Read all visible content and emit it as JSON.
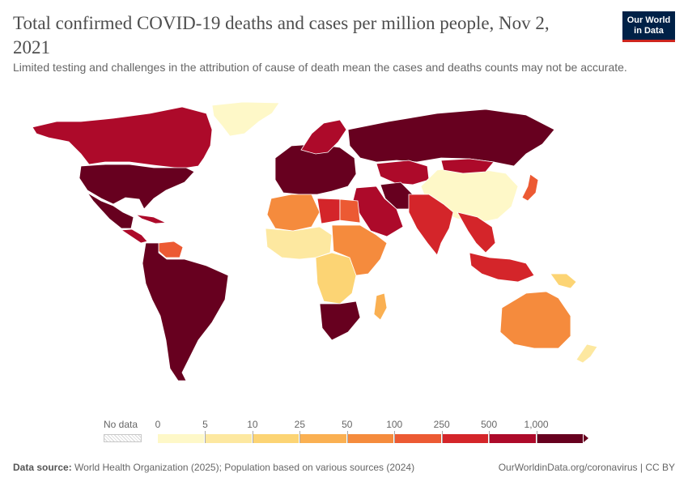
{
  "header": {
    "title": "Total confirmed COVID-19 deaths and cases per million people, Nov 2, 2021",
    "subtitle": "Limited testing and challenges in the attribution of cause of death mean the cases and deaths counts may not be accurate.",
    "logo_line1": "Our World",
    "logo_line2": "in Data"
  },
  "legend": {
    "no_data_label": "No data",
    "ticks": [
      "0",
      "5",
      "10",
      "25",
      "50",
      "100",
      "250",
      "500",
      "1,000"
    ],
    "colors": [
      "#fef8c8",
      "#fde8a0",
      "#fcd474",
      "#fab052",
      "#f58b3d",
      "#ec5a33",
      "#d4252a",
      "#ad0a2a",
      "#67001f"
    ]
  },
  "footer": {
    "source_label": "Data source:",
    "source_text": "World Health Organization (2025); Population based on various sources (2024)",
    "link": "OurWorldinData.org/coronavirus | CC BY"
  },
  "map": {
    "regions": [
      {
        "name": "Greenland",
        "color": "#fef8c8"
      },
      {
        "name": "Canada",
        "color": "#ad0a2a"
      },
      {
        "name": "United States",
        "color": "#67001f"
      },
      {
        "name": "Mexico",
        "color": "#67001f"
      },
      {
        "name": "Central America",
        "color": "#ad0a2a"
      },
      {
        "name": "Venezuela",
        "color": "#ec5a33"
      },
      {
        "name": "South America",
        "color": "#67001f"
      },
      {
        "name": "Europe",
        "color": "#67001f"
      },
      {
        "name": "Scandinavia",
        "color": "#ad0a2a"
      },
      {
        "name": "Russia",
        "color": "#67001f"
      },
      {
        "name": "Kazakhstan",
        "color": "#ad0a2a"
      },
      {
        "name": "China",
        "color": "#fef8c8"
      },
      {
        "name": "Mongolia",
        "color": "#ad0a2a"
      },
      {
        "name": "Japan",
        "color": "#ec5a33"
      },
      {
        "name": "Middle East",
        "color": "#ad0a2a"
      },
      {
        "name": "Iran",
        "color": "#67001f"
      },
      {
        "name": "India",
        "color": "#d4252a"
      },
      {
        "name": "Southeast Asia",
        "color": "#d4252a"
      },
      {
        "name": "Indonesia",
        "color": "#d4252a"
      },
      {
        "name": "Papua New Guinea",
        "color": "#fcd474"
      },
      {
        "name": "North Africa West",
        "color": "#f58b3d"
      },
      {
        "name": "Libya",
        "color": "#d4252a"
      },
      {
        "name": "Egypt",
        "color": "#ec5a33"
      },
      {
        "name": "West Africa",
        "color": "#fde8a0"
      },
      {
        "name": "Central Africa",
        "color": "#fcd474"
      },
      {
        "name": "East Africa",
        "color": "#f58b3d"
      },
      {
        "name": "Southern Africa",
        "color": "#67001f"
      },
      {
        "name": "Madagascar",
        "color": "#fab052"
      },
      {
        "name": "Australia",
        "color": "#f58b3d"
      },
      {
        "name": "New Zealand",
        "color": "#fde8a0"
      }
    ]
  }
}
